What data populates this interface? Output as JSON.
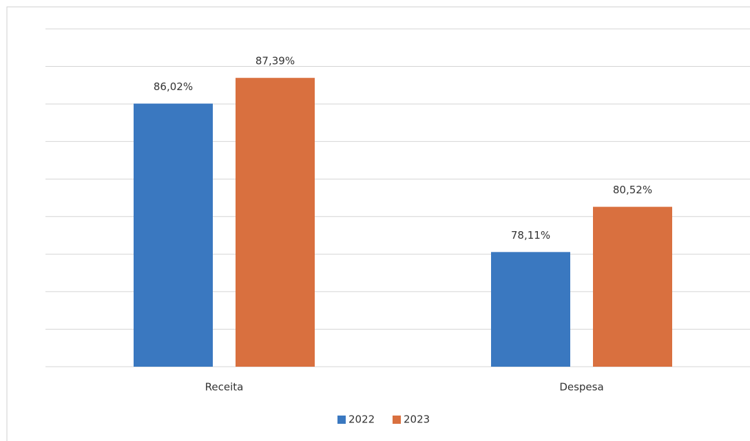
{
  "chart_data": {
    "type": "bar",
    "categories": [
      "Receita",
      "Despesa"
    ],
    "series": [
      {
        "name": "2022",
        "color": "#3a78c0",
        "values": [
          86.02,
          78.11
        ],
        "value_labels": [
          "86,02%",
          "78,11%"
        ]
      },
      {
        "name": "2023",
        "color": "#d9703f",
        "values": [
          87.39,
          80.52
        ],
        "value_labels": [
          "87,39%",
          "80,52%"
        ]
      }
    ],
    "ylim": [
      72,
      90
    ],
    "yticks": [
      72,
      74,
      76,
      78,
      80,
      82,
      84,
      86,
      88,
      90
    ],
    "grid": true,
    "legend": "bottom"
  }
}
